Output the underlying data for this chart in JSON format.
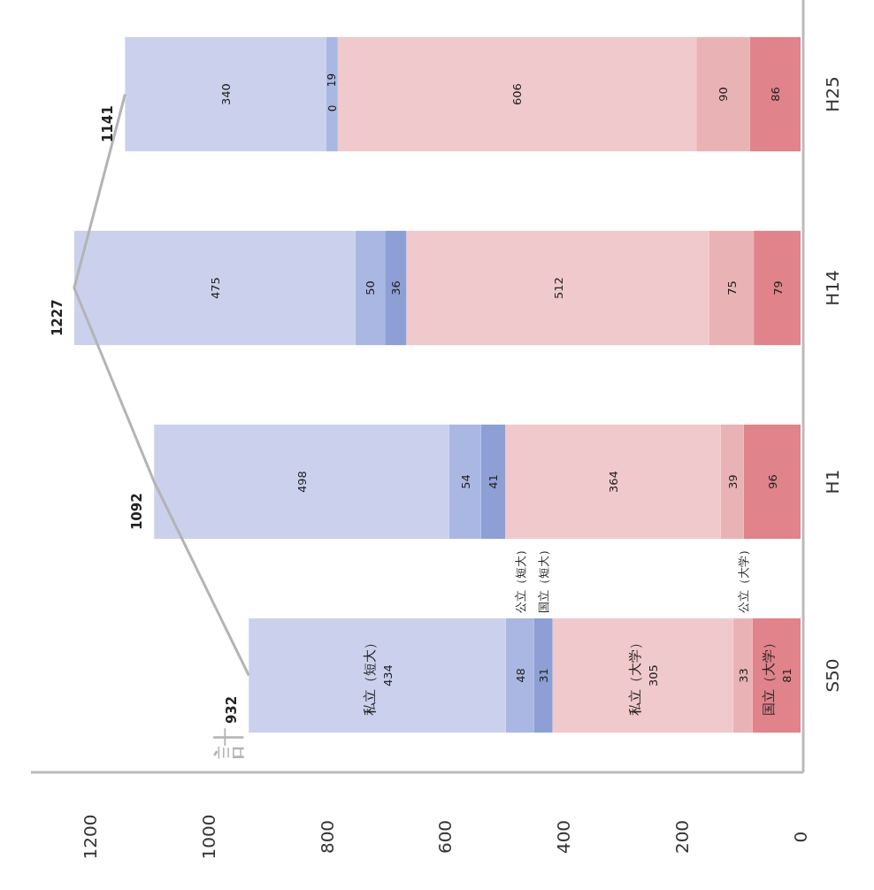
{
  "chart_data": {
    "type": "bar",
    "stacked": true,
    "orientation": "horizontal",
    "categories": [
      "H25",
      "H14",
      "H1",
      "S50"
    ],
    "xlim": [
      1300,
      0
    ],
    "xticks": [
      0,
      200,
      400,
      600,
      800,
      1000,
      1200
    ],
    "data_labels": true,
    "series": [
      {
        "name": "国立（大学）",
        "color": "#e0838a",
        "values": [
          86,
          79,
          96,
          81
        ]
      },
      {
        "name": "公立（大学）",
        "color": "#e9b3b5",
        "values": [
          90,
          75,
          39,
          33
        ]
      },
      {
        "name": "私立（大学）",
        "color": "#f0c9cc",
        "values": [
          606,
          512,
          364,
          305
        ]
      },
      {
        "name": "国立（短大）",
        "color": "#8e9fd6",
        "values": [
          0,
          36,
          41,
          31
        ]
      },
      {
        "name": "公立（短大）",
        "color": "#abb7e3",
        "values": [
          19,
          50,
          54,
          48
        ]
      },
      {
        "name": "私立（短大）",
        "color": "#cbd1ec",
        "values": [
          340,
          475,
          498,
          434
        ]
      },
      {
        "name": "計",
        "type": "line",
        "color": "#b4b4b4",
        "values": [
          1141,
          1227,
          1092,
          932
        ]
      }
    ]
  }
}
